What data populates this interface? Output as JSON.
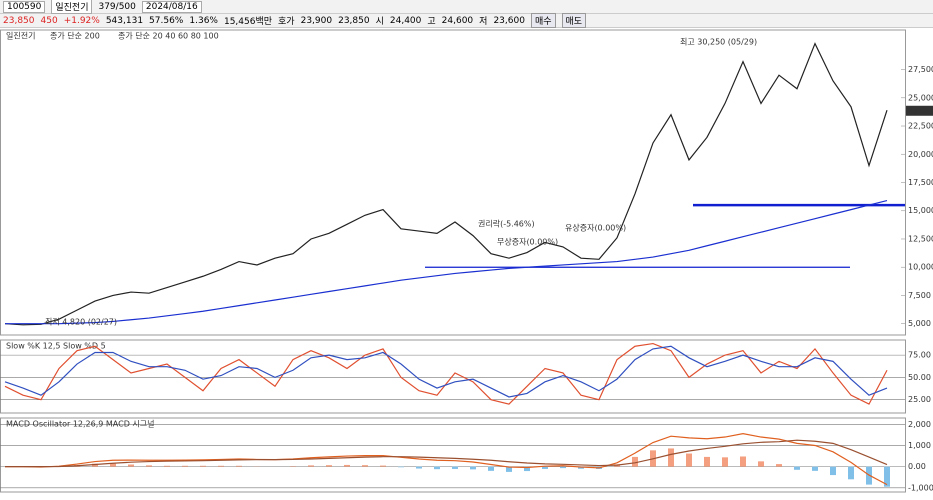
{
  "toolbar": {
    "code": "100590",
    "name": "일진전기",
    "count": "379/500",
    "date": "2024/08/16"
  },
  "quote": [
    "23,850",
    "450",
    "+1.92%",
    "543,131",
    "57.56%",
    "1.36%",
    "15,456백만",
    "호가",
    "23,900",
    "23,850",
    "시",
    "24,400",
    "고",
    "24,600",
    "저",
    "23,600",
    "매수",
    "매도"
  ],
  "chart_data": [
    {
      "type": "line",
      "title": "일진전기",
      "legend": [
        "종가 단순 200",
        "종가 단순 20 40 60 80 100"
      ],
      "ylim": [
        4000,
        31000
      ],
      "yticks": [
        {
          "value": 5000,
          "label": "5,000"
        },
        {
          "value": 7500,
          "label": "7,500"
        },
        {
          "value": 10000,
          "label": "10,000"
        },
        {
          "value": 12500,
          "label": "12,500"
        },
        {
          "value": 15000,
          "label": "15,000"
        },
        {
          "value": 17500,
          "label": "17,500"
        },
        {
          "value": 20000,
          "label": "20,000"
        },
        {
          "value": 22500,
          "label": "22,500"
        },
        {
          "value": 25000,
          "label": "25,000"
        },
        {
          "value": 27500,
          "label": "27,500"
        }
      ],
      "last_price": {
        "value": 23850,
        "label": "23,850"
      },
      "annotations": [
        "최고 30,250 (05/29)",
        "최저 4,820 (02/27)",
        "권리락(-5.46%)",
        "무상증자(0.00%)",
        "유상증자(0.00%)"
      ],
      "levels": [
        10000,
        15500
      ],
      "series": [
        {
          "name": "종가",
          "color": "#222222",
          "values": [
            5000,
            4900,
            4950,
            5400,
            6200,
            7000,
            7500,
            7800,
            7700,
            8200,
            8700,
            9200,
            9800,
            10500,
            10200,
            10800,
            11200,
            12500,
            13000,
            13800,
            14600,
            15100,
            13400,
            13200,
            13000,
            14000,
            12800,
            11200,
            10800,
            11300,
            12200,
            11800,
            10800,
            10700,
            12600,
            16500,
            21000,
            23500,
            19500,
            21500,
            24500,
            28200,
            24500,
            27000,
            25800,
            29800,
            26500,
            24200,
            19000,
            23900
          ]
        },
        {
          "name": "종가 단순 200",
          "color": "#1a2fd0",
          "values": [
            5000,
            5000,
            5000,
            5000,
            5050,
            5100,
            5200,
            5350,
            5500,
            5700,
            5900,
            6100,
            6350,
            6600,
            6850,
            7100,
            7350,
            7600,
            7850,
            8100,
            8350,
            8600,
            8850,
            9050,
            9250,
            9450,
            9600,
            9750,
            9900,
            10000,
            10100,
            10200,
            10300,
            10400,
            10500,
            10700,
            10900,
            11200,
            11500,
            11900,
            12300,
            12700,
            13100,
            13500,
            13900,
            14300,
            14700,
            15100,
            15500,
            15900
          ]
        }
      ]
    },
    {
      "type": "line",
      "title": "Slow %K 12,5  Slow %D 5",
      "ylim": [
        10,
        92
      ],
      "yticks": [
        {
          "value": 25,
          "label": "25.00"
        },
        {
          "value": 50,
          "label": "50.00"
        },
        {
          "value": 75,
          "label": "75.00"
        }
      ],
      "series": [
        {
          "name": "Slow %K",
          "color": "#e05030",
          "values": [
            40,
            30,
            25,
            60,
            80,
            85,
            70,
            55,
            60,
            65,
            50,
            35,
            60,
            70,
            55,
            40,
            70,
            80,
            72,
            60,
            75,
            82,
            50,
            35,
            30,
            55,
            45,
            25,
            20,
            40,
            60,
            55,
            30,
            25,
            70,
            85,
            88,
            80,
            50,
            65,
            75,
            80,
            55,
            68,
            60,
            82,
            55,
            30,
            20,
            58
          ]
        },
        {
          "name": "Slow %D",
          "color": "#3050c0",
          "values": [
            45,
            38,
            30,
            45,
            65,
            78,
            78,
            68,
            62,
            62,
            58,
            48,
            52,
            62,
            60,
            50,
            58,
            72,
            75,
            70,
            72,
            78,
            65,
            48,
            38,
            45,
            48,
            38,
            28,
            32,
            45,
            52,
            45,
            35,
            48,
            70,
            82,
            85,
            72,
            62,
            68,
            75,
            68,
            62,
            62,
            72,
            68,
            48,
            30,
            38
          ]
        }
      ]
    },
    {
      "type": "line",
      "title": "MACD Oscillator 12,26,9  MACD  시그널",
      "ylim": [
        -1200,
        2300
      ],
      "yticks": [
        {
          "value": -1000,
          "label": "-1,000"
        },
        {
          "value": 0,
          "label": "0.00"
        },
        {
          "value": 1000,
          "label": "1,000"
        },
        {
          "value": 2000,
          "label": "2,000"
        }
      ],
      "oscillator": [
        0,
        0,
        -20,
        15,
        80,
        140,
        140,
        100,
        60,
        40,
        40,
        40,
        40,
        40,
        10,
        0,
        20,
        60,
        70,
        80,
        70,
        50,
        -30,
        -90,
        -120,
        -110,
        -130,
        -200,
        -250,
        -210,
        -110,
        -70,
        -100,
        -110,
        110,
        460,
        770,
        860,
        620,
        460,
        440,
        480,
        250,
        120,
        -150,
        -200,
        -400,
        -600,
        -850,
        -950
      ],
      "series": [
        {
          "name": "MACD",
          "color": "#e06020",
          "values": [
            0,
            0,
            -20,
            20,
            120,
            240,
            300,
            310,
            300,
            300,
            310,
            320,
            340,
            360,
            340,
            330,
            360,
            420,
            460,
            500,
            520,
            520,
            440,
            360,
            300,
            280,
            220,
            100,
            -20,
            -40,
            20,
            40,
            -20,
            -60,
            180,
            640,
            1140,
            1440,
            1360,
            1320,
            1400,
            1560,
            1400,
            1300,
            1100,
            1000,
            700,
            200,
            -400,
            -850
          ]
        },
        {
          "name": "시그널",
          "color": "#9a5030",
          "values": [
            0,
            0,
            0,
            5,
            40,
            100,
            160,
            210,
            240,
            260,
            270,
            280,
            300,
            320,
            330,
            330,
            340,
            360,
            390,
            420,
            450,
            470,
            470,
            450,
            420,
            390,
            350,
            300,
            230,
            170,
            130,
            110,
            80,
            50,
            70,
            180,
            370,
            580,
            740,
            860,
            960,
            1080,
            1150,
            1180,
            1250,
            1200,
            1100,
            800,
            450,
            100
          ]
        }
      ]
    }
  ]
}
